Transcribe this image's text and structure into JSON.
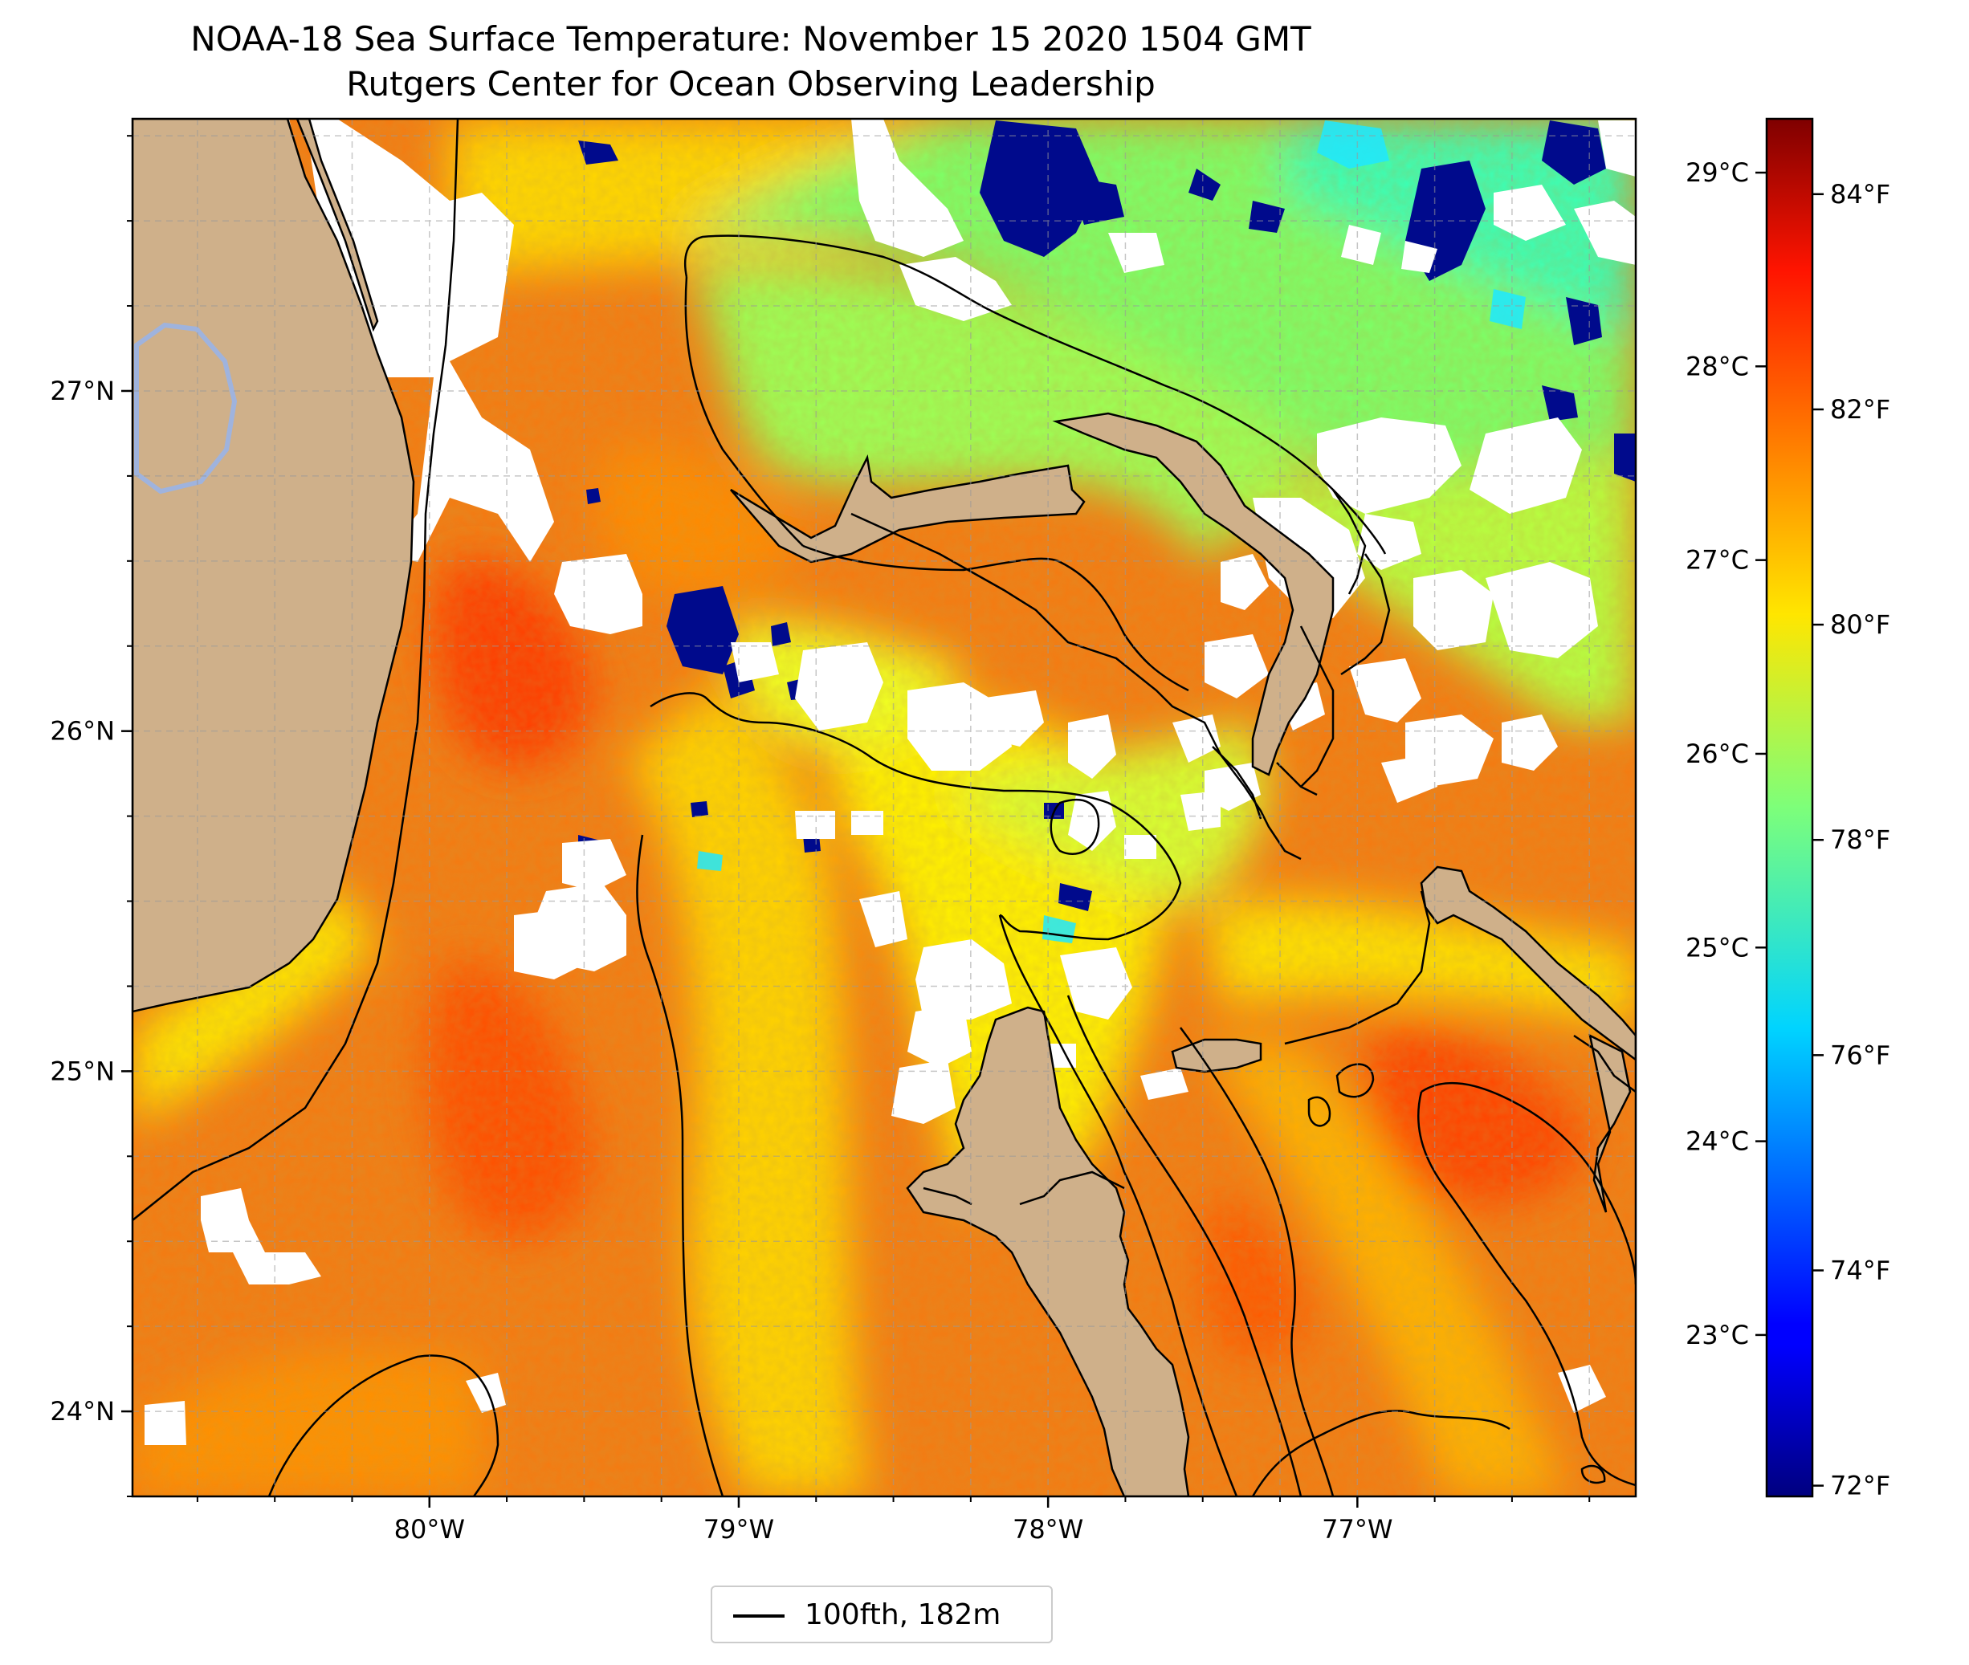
{
  "title": {
    "line1": "NOAA-18 Sea Surface Temperature: November 15 2020 1504 GMT",
    "line2": "Rutgers Center for Ocean Observing Leadership"
  },
  "map": {
    "lat_ticks": [
      {
        "value": 27,
        "label": "27°N"
      },
      {
        "value": 26,
        "label": "26°N"
      },
      {
        "value": 25,
        "label": "25°N"
      },
      {
        "value": 24,
        "label": "24°N"
      }
    ],
    "lon_ticks": [
      {
        "value": -80,
        "label": "80°W"
      },
      {
        "value": -79,
        "label": "79°W"
      },
      {
        "value": -78,
        "label": "78°W"
      },
      {
        "value": -77,
        "label": "77°W"
      }
    ],
    "lat_range": [
      23.75,
      27.8
    ],
    "lon_range": [
      -80.96,
      -76.1
    ],
    "gridlines": true,
    "land_color": "#cfb08a"
  },
  "colorbar": {
    "celsius_ticks": [
      {
        "value": 29,
        "label": "29°C"
      },
      {
        "value": 28,
        "label": "28°C"
      },
      {
        "value": 27,
        "label": "27°C"
      },
      {
        "value": 26,
        "label": "26°C"
      },
      {
        "value": 25,
        "label": "25°C"
      },
      {
        "value": 24,
        "label": "24°C"
      },
      {
        "value": 23,
        "label": "23°C"
      }
    ],
    "fahrenheit_ticks": [
      {
        "value": 84,
        "label": "84°F"
      },
      {
        "value": 82,
        "label": "82°F"
      },
      {
        "value": 80,
        "label": "80°F"
      },
      {
        "value": 78,
        "label": "78°F"
      },
      {
        "value": 76,
        "label": "76°F"
      },
      {
        "value": 74,
        "label": "74°F"
      },
      {
        "value": 72,
        "label": "72°F"
      }
    ],
    "range_f": [
      71.9,
      84.7
    ],
    "colormap": "jet"
  },
  "legend": {
    "label": "100fth, 182m"
  }
}
